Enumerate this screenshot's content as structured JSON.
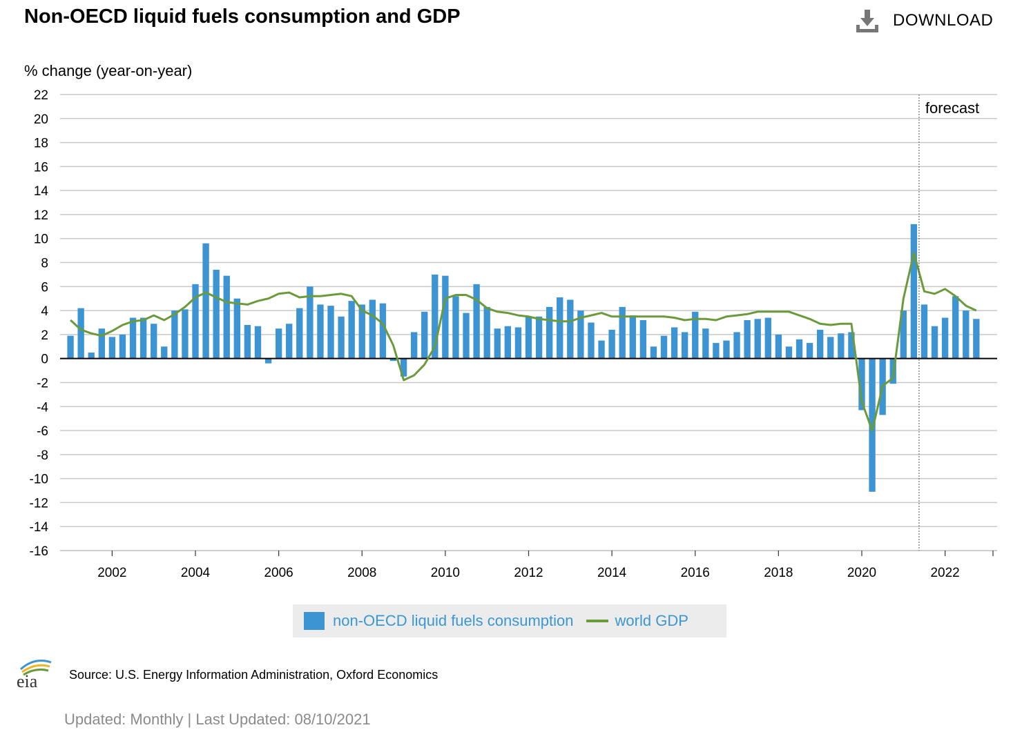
{
  "header": {
    "title": "Non-OECD liquid fuels consumption and GDP",
    "download_label": "DOWNLOAD"
  },
  "footer": {
    "logo_text": "eia",
    "source": "Source: U.S. Energy Information Administration, Oxford Economics",
    "updated": "Updated: Monthly | Last Updated: 08/10/2021"
  },
  "colors": {
    "bar": "#3d94d3",
    "line": "#6a9a3a",
    "grid": "#c8c8c8",
    "axis": "#000000"
  },
  "chart_data": {
    "type": "bar",
    "title": "Non-OECD liquid fuels consumption and GDP",
    "ylabel": "% change (year-on-year)",
    "xlabel": "",
    "ylim": [
      -16,
      22
    ],
    "yticks": [
      22,
      20,
      18,
      16,
      14,
      12,
      10,
      8,
      6,
      4,
      2,
      0,
      -2,
      -4,
      -6,
      -8,
      -10,
      -12,
      -14,
      -16
    ],
    "x_tick_labels": [
      "2002",
      "2004",
      "2006",
      "2008",
      "2010",
      "2012",
      "2014",
      "2016",
      "2018",
      "2020",
      "2022"
    ],
    "x_tick_years": [
      2002,
      2004,
      2006,
      2008,
      2010,
      2012,
      2014,
      2016,
      2018,
      2020,
      2022
    ],
    "x_range": [
      2000.75,
      2023.25
    ],
    "forecast_start": 2021.375,
    "forecast_label": "forecast",
    "legend_position": "bottom-center",
    "x": [
      2001.0,
      2001.25,
      2001.5,
      2001.75,
      2002.0,
      2002.25,
      2002.5,
      2002.75,
      2003.0,
      2003.25,
      2003.5,
      2003.75,
      2004.0,
      2004.25,
      2004.5,
      2004.75,
      2005.0,
      2005.25,
      2005.5,
      2005.75,
      2006.0,
      2006.25,
      2006.5,
      2006.75,
      2007.0,
      2007.25,
      2007.5,
      2007.75,
      2008.0,
      2008.25,
      2008.5,
      2008.75,
      2009.0,
      2009.25,
      2009.5,
      2009.75,
      2010.0,
      2010.25,
      2010.5,
      2010.75,
      2011.0,
      2011.25,
      2011.5,
      2011.75,
      2012.0,
      2012.25,
      2012.5,
      2012.75,
      2013.0,
      2013.25,
      2013.5,
      2013.75,
      2014.0,
      2014.25,
      2014.5,
      2014.75,
      2015.0,
      2015.25,
      2015.5,
      2015.75,
      2016.0,
      2016.25,
      2016.5,
      2016.75,
      2017.0,
      2017.25,
      2017.5,
      2017.75,
      2018.0,
      2018.25,
      2018.5,
      2018.75,
      2019.0,
      2019.25,
      2019.5,
      2019.75,
      2020.0,
      2020.25,
      2020.5,
      2020.75,
      2021.0,
      2021.25,
      2021.5,
      2021.75,
      2022.0,
      2022.25,
      2022.5,
      2022.75
    ],
    "series": [
      {
        "name": "non-OECD liquid fuels consumption",
        "type": "bar",
        "values": [
          1.9,
          4.2,
          0.5,
          2.5,
          1.8,
          2.0,
          3.4,
          3.4,
          2.9,
          1.0,
          4.0,
          4.1,
          6.2,
          9.6,
          7.4,
          6.9,
          5.0,
          2.8,
          2.7,
          -0.4,
          2.5,
          2.9,
          4.2,
          6.0,
          4.5,
          4.4,
          3.5,
          4.8,
          4.5,
          4.9,
          4.6,
          -0.2,
          -1.5,
          2.2,
          3.9,
          7.0,
          6.9,
          5.2,
          3.8,
          6.2,
          4.3,
          2.5,
          2.7,
          2.6,
          3.5,
          3.5,
          4.3,
          5.1,
          4.9,
          4.0,
          3.0,
          1.5,
          2.4,
          4.3,
          3.6,
          3.2,
          1.0,
          1.9,
          2.6,
          2.2,
          3.9,
          2.5,
          1.3,
          1.5,
          2.2,
          3.2,
          3.3,
          3.4,
          2.0,
          1.0,
          1.6,
          1.3,
          2.4,
          1.8,
          2.1,
          2.2,
          -4.3,
          -11.1,
          -4.7,
          -2.1,
          4.0,
          11.2,
          4.5,
          2.7,
          3.4,
          5.2,
          4.0,
          3.3
        ]
      },
      {
        "name": "world GDP",
        "type": "line",
        "values": [
          3.2,
          2.4,
          2.1,
          1.9,
          2.3,
          2.8,
          3.1,
          3.2,
          3.6,
          3.2,
          3.7,
          4.3,
          5.1,
          5.5,
          5.1,
          4.7,
          4.6,
          4.5,
          4.8,
          5.0,
          5.4,
          5.5,
          5.1,
          5.2,
          5.2,
          5.3,
          5.4,
          5.2,
          4.0,
          3.6,
          2.9,
          1.1,
          -1.8,
          -1.4,
          -0.5,
          1.0,
          5.0,
          5.3,
          5.3,
          4.9,
          4.2,
          3.9,
          3.8,
          3.6,
          3.5,
          3.3,
          3.2,
          3.1,
          3.1,
          3.4,
          3.6,
          3.8,
          3.5,
          3.5,
          3.5,
          3.5,
          3.5,
          3.5,
          3.4,
          3.2,
          3.3,
          3.3,
          3.2,
          3.5,
          3.6,
          3.7,
          3.9,
          3.9,
          3.9,
          3.9,
          3.6,
          3.3,
          2.9,
          2.8,
          2.9,
          2.9,
          -3.6,
          -6.0,
          -2.3,
          -1.6,
          5.0,
          8.8,
          5.6,
          5.4,
          5.8,
          5.2,
          4.4,
          4.0
        ]
      }
    ]
  }
}
